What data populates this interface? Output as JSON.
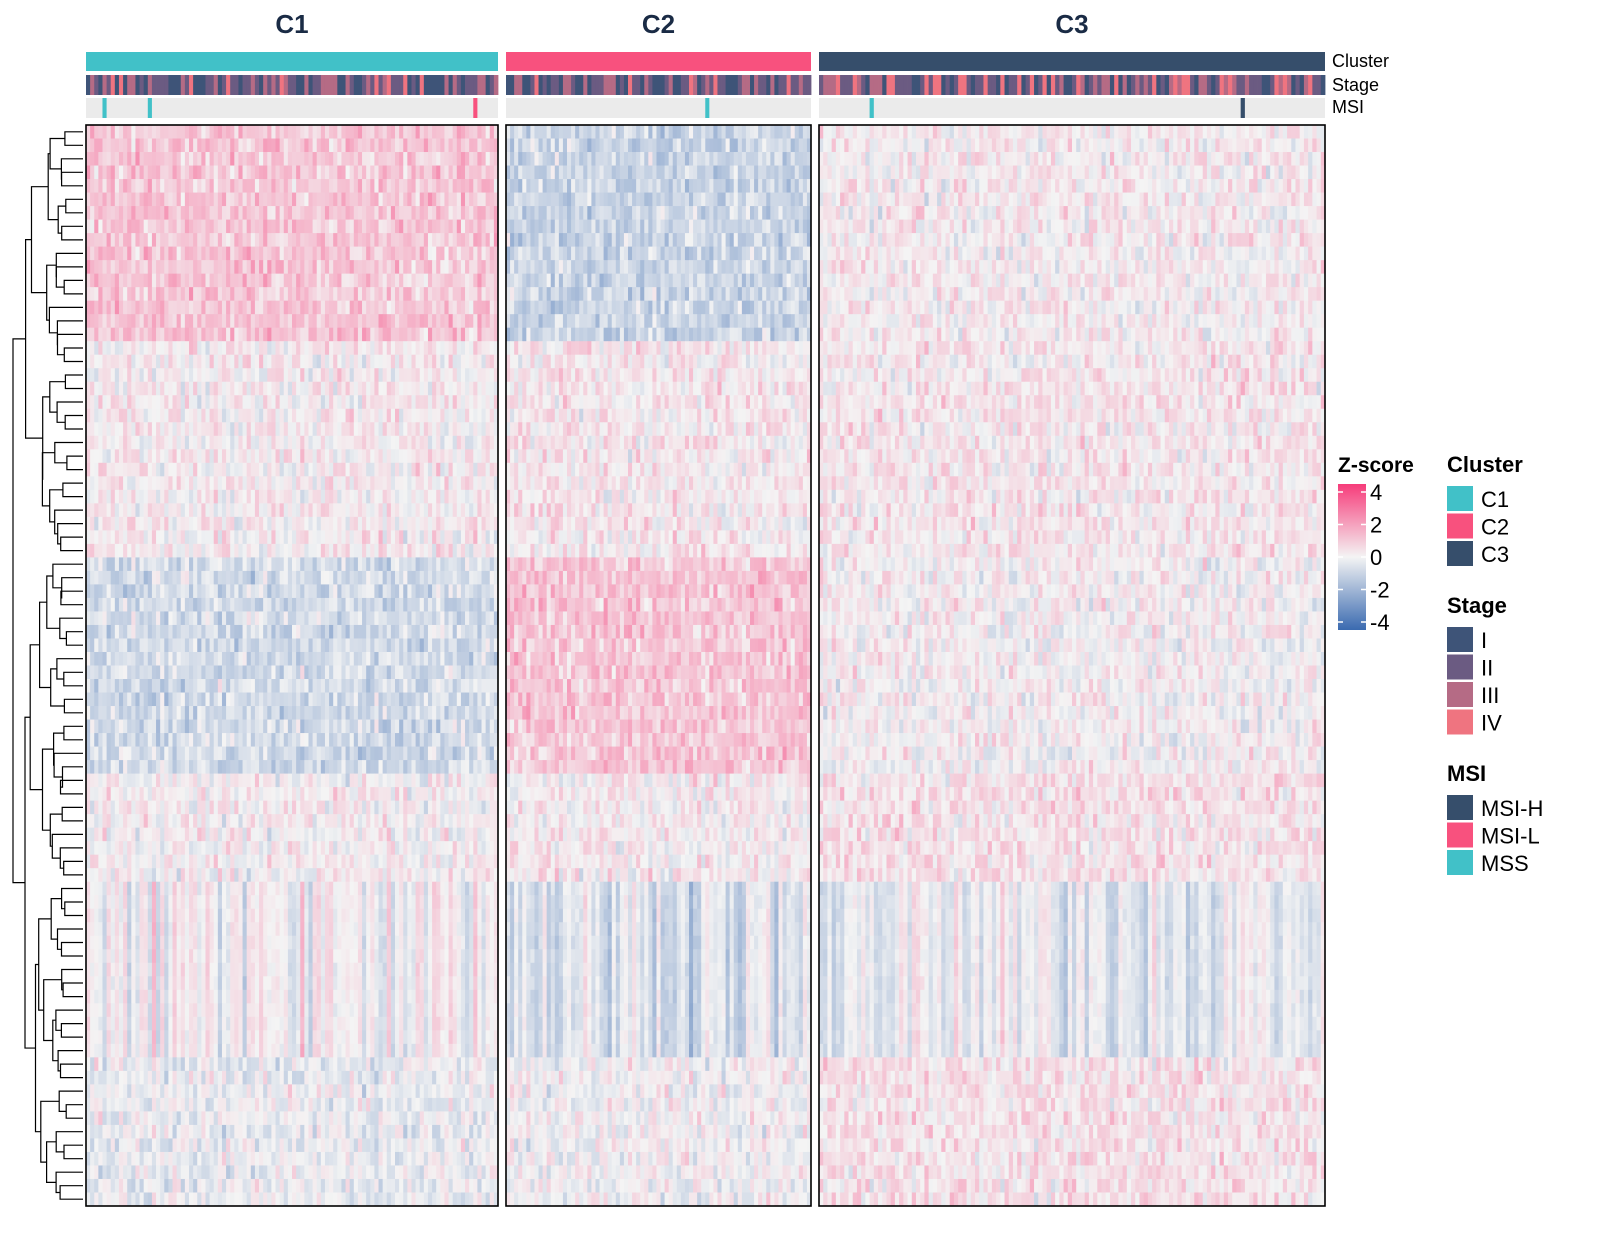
{
  "chart_data": {
    "type": "heatmap",
    "title": "",
    "column_groups": [
      {
        "name": "C1",
        "n_samples": 100
      },
      {
        "name": "C2",
        "n_samples": 75
      },
      {
        "name": "C3",
        "n_samples": 120
      }
    ],
    "n_genes": 80,
    "annotation_tracks": [
      "Cluster",
      "Stage",
      "MSI"
    ],
    "msi_highlights": [
      {
        "group": "C1",
        "sample": 4,
        "status": "MSS"
      },
      {
        "group": "C1",
        "sample": 15,
        "status": "MSS"
      },
      {
        "group": "C1",
        "sample": 94,
        "status": "MSI-L"
      },
      {
        "group": "C2",
        "sample": 49,
        "status": "MSS"
      },
      {
        "group": "C3",
        "sample": 12,
        "status": "MSS"
      },
      {
        "group": "C3",
        "sample": 100,
        "status": "MSI-H"
      }
    ],
    "gene_blocks": [
      {
        "from": 0,
        "to": 16,
        "C1": 1.0,
        "C2": -0.9,
        "C3": 0.2
      },
      {
        "from": 16,
        "to": 32,
        "C1": 0.2,
        "C2": 0.3,
        "C3": 0.3
      },
      {
        "from": 32,
        "to": 48,
        "C1": -0.7,
        "C2": 1.0,
        "C3": 0.1
      },
      {
        "from": 48,
        "to": 56,
        "C1": 0.1,
        "C2": 0.2,
        "C3": 0.4
      },
      {
        "from": 56,
        "to": 69,
        "C1": 0.0,
        "C2": -0.6,
        "C3": -0.3
      },
      {
        "from": 69,
        "to": 80,
        "C1": -0.2,
        "C2": 0.0,
        "C3": 0.4
      }
    ],
    "colorscale": {
      "title": "Z-score",
      "min": -4,
      "max": 4,
      "ticks": [
        "4",
        "2",
        "0",
        "-2",
        "-4"
      ],
      "colors": [
        "#3a6ab0",
        "#f4f4f4",
        "#f63c7a"
      ]
    },
    "legends": [
      {
        "title": "Cluster",
        "items": [
          {
            "label": "C1",
            "color": "#41c1c8"
          },
          {
            "label": "C2",
            "color": "#f8517e"
          },
          {
            "label": "C3",
            "color": "#364e6b"
          }
        ]
      },
      {
        "title": "Stage",
        "items": [
          {
            "label": "I",
            "color": "#3e5478"
          },
          {
            "label": "II",
            "color": "#6b5b82"
          },
          {
            "label": "III",
            "color": "#b56b85"
          },
          {
            "label": "IV",
            "color": "#ef7480"
          }
        ]
      },
      {
        "title": "MSI",
        "items": [
          {
            "label": "MSI-H",
            "color": "#364e6b"
          },
          {
            "label": "MSI-L",
            "color": "#f8517e"
          },
          {
            "label": "MSS",
            "color": "#41c1c8"
          }
        ]
      }
    ]
  }
}
